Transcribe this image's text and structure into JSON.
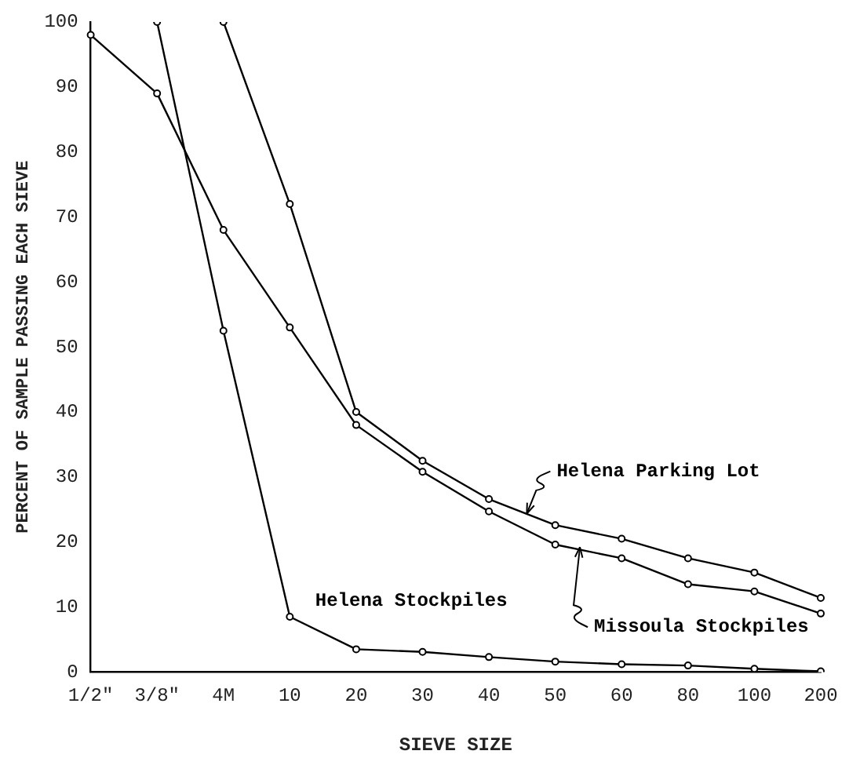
{
  "chart_data": {
    "type": "line",
    "xlabel": "SIEVE SIZE",
    "ylabel": "PERCENT OF SAMPLE PASSING EACH SIEVE",
    "categories": [
      "1/2\"",
      "3/8\"",
      "4M",
      "10",
      "20",
      "30",
      "40",
      "50",
      "60",
      "80",
      "100",
      "200"
    ],
    "series": [
      {
        "name": "Helena Parking Lot",
        "color": "#000000",
        "values": [
          null,
          null,
          100,
          72,
          40,
          32.5,
          26.6,
          22.6,
          20.5,
          17.5,
          15.3,
          11.4
        ]
      },
      {
        "name": "Missoula Stockpiles",
        "color": "#000000",
        "values": [
          98,
          89,
          68,
          53,
          38,
          30.8,
          24.7,
          19.6,
          17.5,
          13.5,
          12.4,
          9.0
        ]
      },
      {
        "name": "Helena Stockpiles",
        "color": "#000000",
        "values": [
          null,
          100,
          52.5,
          8.5,
          3.5,
          3.1,
          2.3,
          1.6,
          1.2,
          1.0,
          0.5,
          0.1
        ]
      }
    ],
    "ylim": [
      0,
      100
    ],
    "yticks": [
      0,
      10,
      20,
      30,
      40,
      50,
      60,
      70,
      80,
      90,
      100
    ],
    "grid": false,
    "legend": false,
    "marker": "circle",
    "line_style": "solid"
  }
}
